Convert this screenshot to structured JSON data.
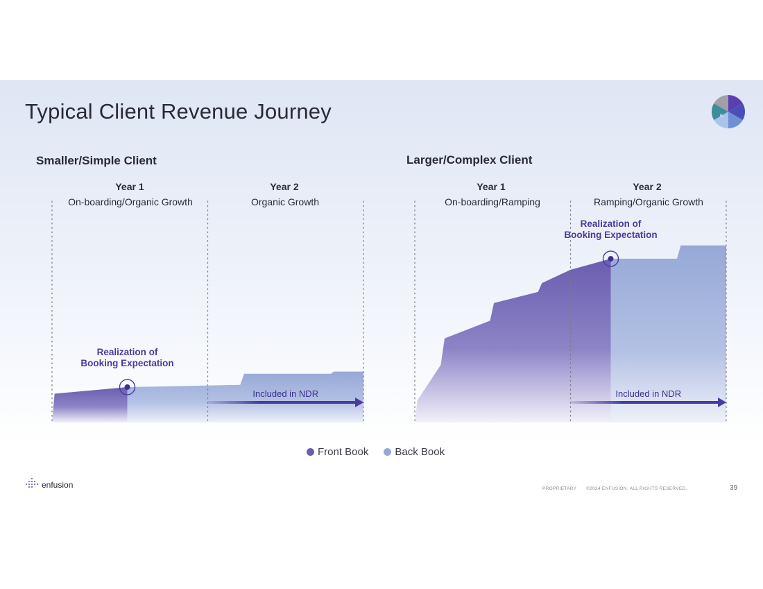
{
  "page": {
    "title": "Typical Client Revenue Journey",
    "logo_number": "6"
  },
  "chart_data": [
    {
      "type": "area",
      "title": "Smaller/Simple Client",
      "x_unit": "months",
      "x_range": [
        0,
        24
      ],
      "ylim": [
        0,
        100
      ],
      "periods": [
        {
          "label": "Year 1",
          "subtitle": "On-boarding/Organic Growth",
          "range": [
            0,
            12
          ]
        },
        {
          "label": "Year 2",
          "subtitle": "Organic Growth",
          "range": [
            12,
            24
          ]
        }
      ],
      "series": [
        {
          "name": "Front Book",
          "points": [
            [
              0,
              0
            ],
            [
              0.2,
              13
            ],
            [
              5.8,
              16
            ],
            [
              5.8,
              0
            ]
          ]
        },
        {
          "name": "Back Book",
          "points": [
            [
              5.8,
              0
            ],
            [
              5.8,
              16
            ],
            [
              14.5,
              17
            ],
            [
              14.8,
              22
            ],
            [
              21.5,
              22
            ],
            [
              21.7,
              23
            ],
            [
              24,
              23
            ],
            [
              24,
              0
            ]
          ]
        }
      ],
      "marker": {
        "x": 5.8,
        "y": 16,
        "label_line1": "Realization of",
        "label_line2": "Booking Expectation"
      },
      "arrow": {
        "from": 12,
        "to": 24,
        "label": "Included in NDR"
      }
    },
    {
      "type": "area",
      "title": "Larger/Complex Client",
      "x_unit": "months",
      "x_range": [
        0,
        24
      ],
      "ylim": [
        0,
        100
      ],
      "periods": [
        {
          "label": "Year 1",
          "subtitle": "On-boarding/Ramping",
          "range": [
            0,
            12
          ]
        },
        {
          "label": "Year 2",
          "subtitle": "Ramping/Organic Growth",
          "range": [
            12,
            24
          ]
        }
      ],
      "series": [
        {
          "name": "Front Book",
          "points": [
            [
              0,
              0
            ],
            [
              0.2,
              10
            ],
            [
              2,
              26
            ],
            [
              2.3,
              38
            ],
            [
              5.8,
              46
            ],
            [
              6.1,
              54
            ],
            [
              9.5,
              59
            ],
            [
              9.8,
              63
            ],
            [
              12,
              69
            ],
            [
              15.1,
              74
            ],
            [
              15.1,
              0
            ]
          ]
        },
        {
          "name": "Back Book",
          "points": [
            [
              15.1,
              0
            ],
            [
              15.1,
              74
            ],
            [
              20.2,
              74
            ],
            [
              20.5,
              80
            ],
            [
              24,
              80
            ],
            [
              24,
              0
            ]
          ]
        }
      ],
      "marker": {
        "x": 15.1,
        "y": 74,
        "label_line1": "Realization of",
        "label_line2": "Booking Expectation"
      },
      "arrow": {
        "from": 12,
        "to": 24,
        "label": "Included in NDR"
      }
    }
  ],
  "legend": {
    "front_label": "Front Book",
    "back_label": "Back Book",
    "front_color": "#6a5db0",
    "back_color": "#96a8d6"
  },
  "footer": {
    "brand": "enfusion",
    "proprietary": "PROPRIETARY",
    "copyright": "©2024 ENFUSION. ALL RIGHTS RESERVED.",
    "page_number": "39"
  }
}
